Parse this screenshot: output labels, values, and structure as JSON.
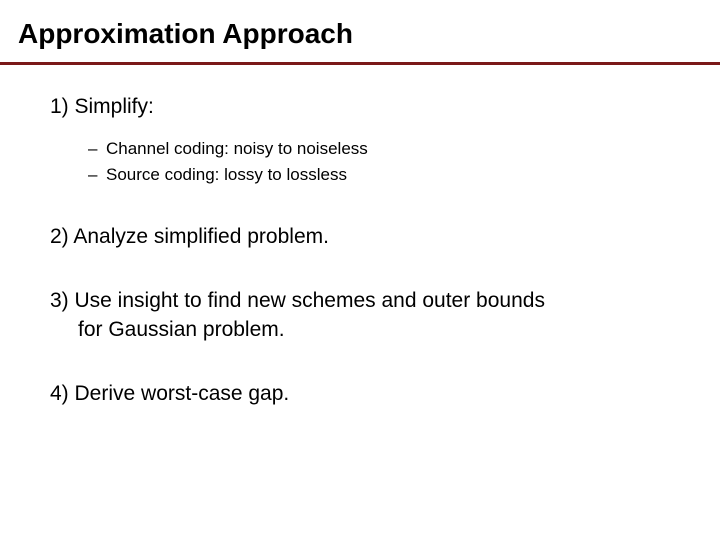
{
  "title": "Approximation Approach",
  "divider_color": "#7a1818",
  "background_color": "#ffffff",
  "text_color": "#000000",
  "title_fontsize": 28,
  "body_fontsize": 21,
  "sub_fontsize": 17,
  "steps": {
    "s1": "1) Simplify:",
    "s1_subs": {
      "a": "Channel coding: noisy to noiseless",
      "b": "Source coding: lossy to lossless"
    },
    "s2": "2) Analyze simplified problem.",
    "s3_line1": "3) Use insight to find new schemes and outer bounds",
    "s3_line2": "for Gaussian problem.",
    "s4": "4) Derive worst-case gap."
  }
}
